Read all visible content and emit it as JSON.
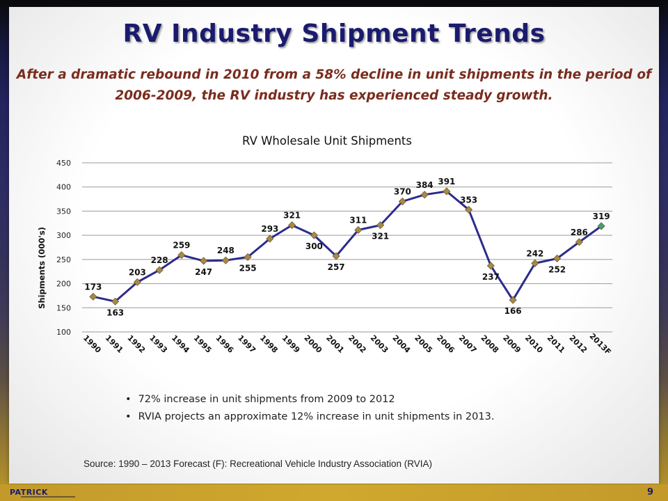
{
  "slide": {
    "title": "RV Industry Shipment Trends",
    "subtitle_line1": "After a dramatic rebound in 2010 from a 58% decline in unit shipments in the period of",
    "subtitle_line2": "2006-2009, the RV industry has experienced steady growth.",
    "bullets": [
      "72% increase in unit shipments from 2009 to 2012",
      "RVIA projects an approximate 12% increase in unit shipments in 2013."
    ],
    "source": "Source: 1990 – 2013 Forecast (F): Recreational Vehicle Industry Association (RVIA)",
    "logo": "PATRICK",
    "page_number": "9"
  },
  "chart_data": {
    "type": "line",
    "title": "RV Wholesale Unit Shipments",
    "xlabel": "",
    "ylabel": "Shipments (000's)",
    "ylim": [
      100,
      450
    ],
    "yticks": [
      100,
      150,
      200,
      250,
      300,
      350,
      400,
      450
    ],
    "grid": true,
    "categories": [
      "1990",
      "1991",
      "1992",
      "1993",
      "1994",
      "1995",
      "1996",
      "1997",
      "1998",
      "1999",
      "2000",
      "2001",
      "2002",
      "2003",
      "2004",
      "2005",
      "2006",
      "2007",
      "2008",
      "2009",
      "2010",
      "2011",
      "2012",
      "2013F"
    ],
    "series": [
      {
        "values": [
          173,
          163,
          203,
          228,
          259,
          247,
          248,
          255,
          293,
          321,
          300,
          257,
          311,
          321,
          370,
          384,
          391,
          353,
          237,
          166,
          242,
          252,
          286,
          319
        ],
        "labels": [
          "173",
          "163",
          "203",
          "228",
          "259",
          "247",
          "248",
          "255",
          "293",
          "321",
          "300",
          "257",
          "311",
          "321",
          "370",
          "384",
          "391",
          "353",
          "237",
          "166",
          "242",
          "252",
          "286",
          "319"
        ],
        "label_pos": [
          "above",
          "below",
          "above",
          "above",
          "above",
          "below",
          "above",
          "below",
          "above",
          "above",
          "below",
          "below",
          "above",
          "below",
          "above",
          "above",
          "above",
          "above",
          "below",
          "below",
          "above",
          "below",
          "above",
          "above"
        ],
        "line_color": "#2b2b8c",
        "marker_color": "#a68a4a",
        "forecast_marker_color": "#3fa07a"
      }
    ]
  }
}
